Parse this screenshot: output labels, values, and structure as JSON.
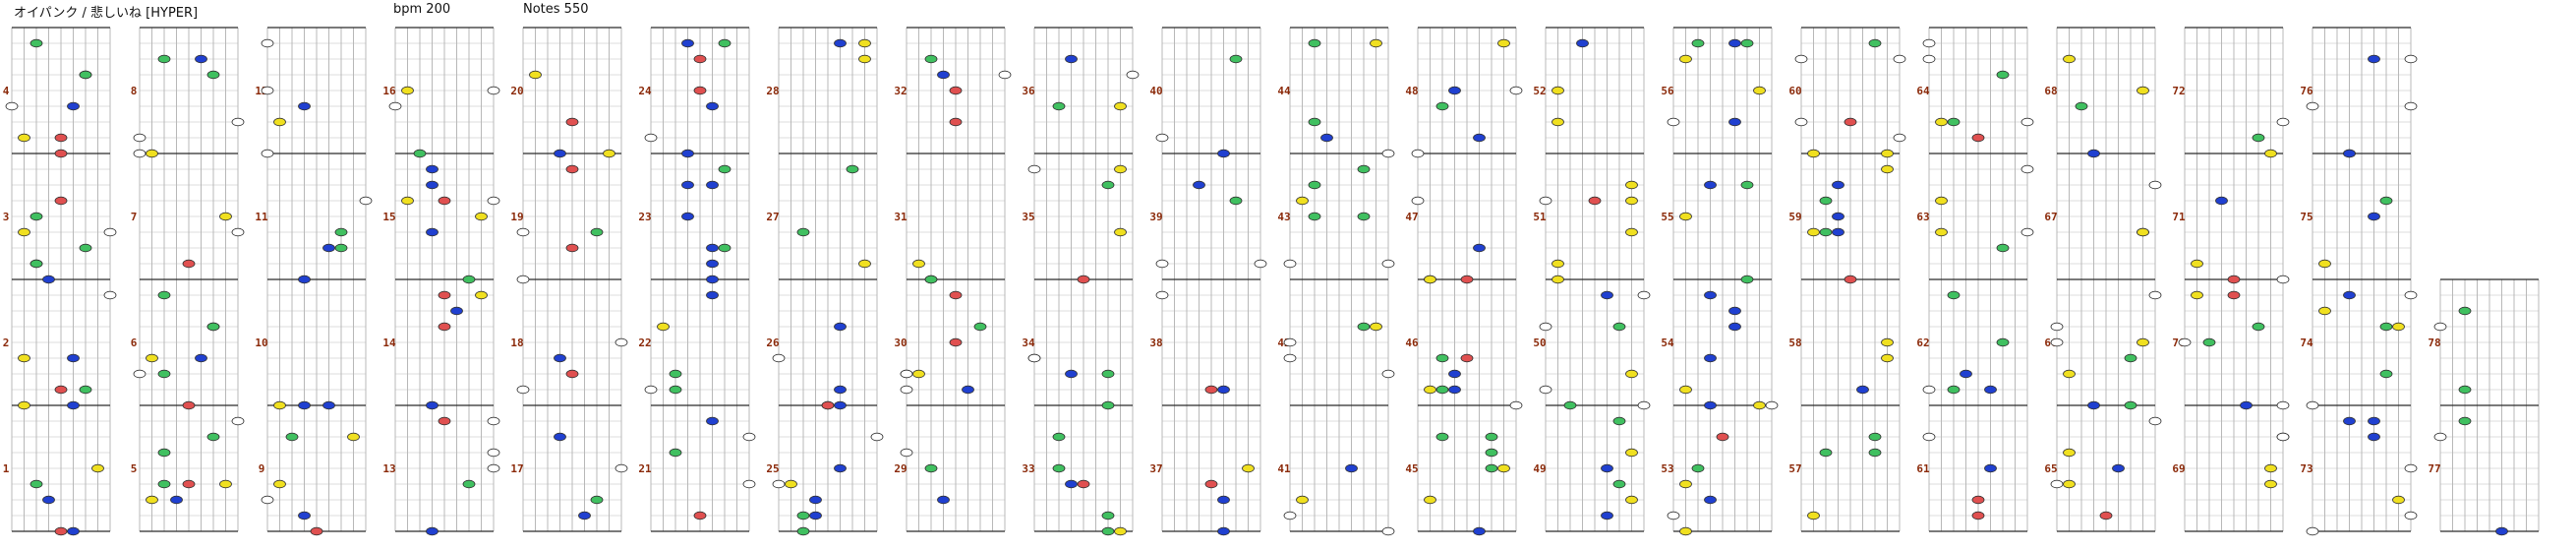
{
  "header": {
    "title": "オイパンク / 悲しいね [HYPER]",
    "bpm": "bpm 200",
    "notes": "Notes 550"
  },
  "chart_data": {
    "type": "pop'n music note chart",
    "buttons": 9,
    "button_colors": [
      "#ffffff",
      "#f0e020",
      "#40c060",
      "#2040d0",
      "#e05050",
      "#2040d0",
      "#40c060",
      "#f0e020",
      "#ffffff"
    ],
    "measures_per_column": 4,
    "column_count": 20,
    "measure_numbers": [
      1,
      2,
      3,
      4,
      5,
      6,
      7,
      8,
      9,
      10,
      11,
      12,
      13,
      14,
      15,
      16,
      17,
      18,
      19,
      20,
      21,
      22,
      23,
      24,
      25,
      26,
      27,
      28,
      29,
      30,
      31,
      32,
      33,
      34,
      35,
      36,
      37,
      38,
      39,
      40,
      41,
      42,
      43,
      44,
      45,
      46,
      47,
      48,
      49,
      50,
      51,
      52,
      53,
      54,
      55,
      56,
      57,
      58,
      59,
      60,
      61,
      62,
      63,
      64,
      65,
      66,
      67,
      68,
      69,
      70,
      71,
      72,
      73,
      74,
      75,
      76,
      77,
      78
    ],
    "total_notes": 550,
    "bpm": 200
  },
  "colors": {
    "background": "#ffffff",
    "lane_line": "#b8b8b8",
    "beat_line": "#dcdcdc",
    "measure_line": "#2a2a2a",
    "measure_number": "#8b2a0a"
  }
}
